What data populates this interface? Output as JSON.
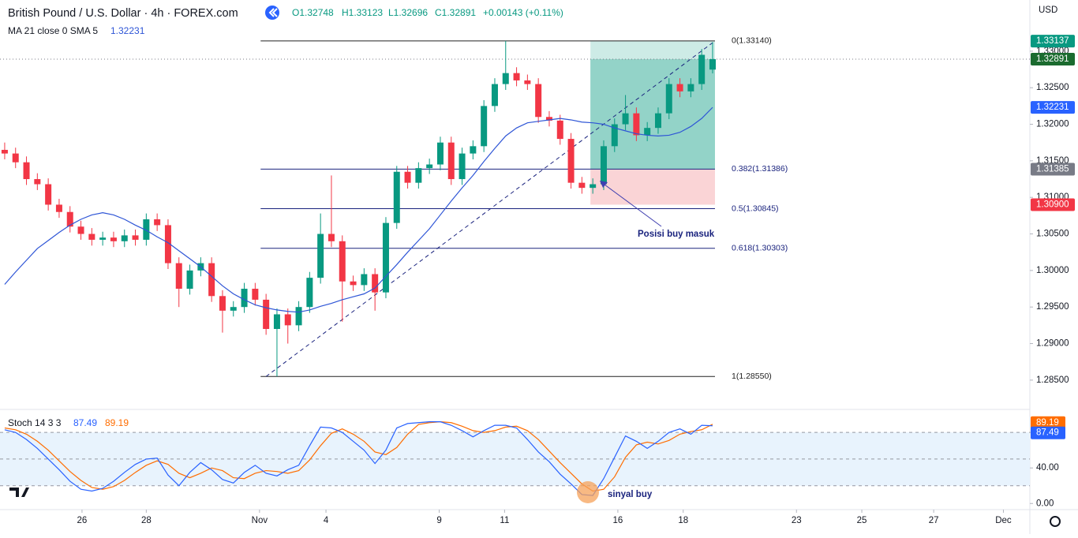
{
  "header": {
    "symbol": "British Pound / U.S. Dollar · 4h · FOREX.com",
    "ohlc_legend": [
      "O1.32748",
      "H1.33123",
      "L1.32696",
      "C1.32891",
      "+0.00143 (+0.11%)"
    ],
    "ma_legend": "MA 21 close 0 SMA 5",
    "ma_value": "1.32231",
    "currency": "USD"
  },
  "chart_data": {
    "type": "candlestick",
    "up_color": "#089981",
    "down_color": "#f23645",
    "ma_color": "#2e55d6",
    "ylim": [
      1.2811,
      1.337
    ],
    "xlim": [
      -0.43,
      94.13
    ],
    "yticks": [
      {
        "value": 1.285,
        "label": "1.28500"
      },
      {
        "value": 1.29,
        "label": "1.29000"
      },
      {
        "value": 1.295,
        "label": "1.29500"
      },
      {
        "value": 1.3,
        "label": "1.30000"
      },
      {
        "value": 1.305,
        "label": "1.30500"
      },
      {
        "value": 1.31,
        "label": "1.31000"
      },
      {
        "value": 1.315,
        "label": "1.31500"
      },
      {
        "value": 1.32,
        "label": "1.32000"
      },
      {
        "value": 1.325,
        "label": "1.32500"
      },
      {
        "value": 1.33,
        "label": "1.33000"
      }
    ],
    "xticks": [
      {
        "value": 7.1,
        "label": "26"
      },
      {
        "value": 13,
        "label": "28"
      },
      {
        "value": 23.4,
        "label": "Nov"
      },
      {
        "value": 29.5,
        "label": "4"
      },
      {
        "value": 39.9,
        "label": "9"
      },
      {
        "value": 45.9,
        "label": "11"
      },
      {
        "value": 56.3,
        "label": "16"
      },
      {
        "value": 62.3,
        "label": "18"
      },
      {
        "value": 72.7,
        "label": "23"
      },
      {
        "value": 78.7,
        "label": "25"
      },
      {
        "value": 85.3,
        "label": "27"
      },
      {
        "value": 91.7,
        "label": "Dec"
      }
    ],
    "candles": [
      [
        1.3165,
        1.3175,
        1.3152,
        1.316
      ],
      [
        1.316,
        1.3168,
        1.314,
        1.3148
      ],
      [
        1.3148,
        1.3156,
        1.3117,
        1.3125
      ],
      [
        1.3125,
        1.3133,
        1.311,
        1.3118
      ],
      [
        1.3118,
        1.3126,
        1.3082,
        1.309
      ],
      [
        1.309,
        1.3098,
        1.3072,
        1.308
      ],
      [
        1.308,
        1.3088,
        1.3052,
        1.306
      ],
      [
        1.306,
        1.3068,
        1.3042,
        1.305
      ],
      [
        1.305,
        1.3058,
        1.3034,
        1.3042
      ],
      [
        1.3042,
        1.3053,
        1.3034,
        1.3045
      ],
      [
        1.3045,
        1.3053,
        1.3032,
        1.304
      ],
      [
        1.304,
        1.3056,
        1.3032,
        1.3048
      ],
      [
        1.3048,
        1.3056,
        1.3034,
        1.3042
      ],
      [
        1.3042,
        1.3078,
        1.3034,
        1.307
      ],
      [
        1.307,
        1.3078,
        1.3054,
        1.3062
      ],
      [
        1.3062,
        1.307,
        1.3002,
        1.301
      ],
      [
        1.301,
        1.3018,
        1.295,
        1.2975
      ],
      [
        1.2975,
        1.3008,
        1.2967,
        1.3
      ],
      [
        1.3,
        1.3018,
        1.2992,
        1.301
      ],
      [
        1.301,
        1.3018,
        1.2957,
        1.2965
      ],
      [
        1.2965,
        1.2973,
        1.2915,
        1.2945
      ],
      [
        1.2945,
        1.2958,
        1.2937,
        1.295
      ],
      [
        1.295,
        1.2983,
        1.2942,
        1.2975
      ],
      [
        1.2975,
        1.2983,
        1.2952,
        1.296
      ],
      [
        1.296,
        1.2968,
        1.2912,
        1.292
      ],
      [
        1.292,
        1.2948,
        1.2855,
        1.294
      ],
      [
        1.294,
        1.2948,
        1.29,
        1.2925
      ],
      [
        1.2925,
        1.2958,
        1.2917,
        1.295
      ],
      [
        1.295,
        1.2998,
        1.2942,
        1.299
      ],
      [
        1.299,
        1.3078,
        1.2982,
        1.305
      ],
      [
        1.305,
        1.313,
        1.3032,
        1.304
      ],
      [
        1.304,
        1.3048,
        1.293,
        1.2985
      ],
      [
        1.2985,
        1.2993,
        1.2972,
        1.298
      ],
      [
        1.298,
        1.3003,
        1.2972,
        1.2995
      ],
      [
        1.2995,
        1.3003,
        1.2945,
        1.297
      ],
      [
        1.297,
        1.3073,
        1.2962,
        1.3065
      ],
      [
        1.3065,
        1.3143,
        1.3057,
        1.3135
      ],
      [
        1.3135,
        1.3143,
        1.3112,
        1.312
      ],
      [
        1.312,
        1.3148,
        1.3112,
        1.314
      ],
      [
        1.314,
        1.3153,
        1.3132,
        1.3145
      ],
      [
        1.3145,
        1.3183,
        1.3137,
        1.3175
      ],
      [
        1.3175,
        1.3183,
        1.3117,
        1.3125
      ],
      [
        1.3125,
        1.3168,
        1.3117,
        1.316
      ],
      [
        1.316,
        1.3178,
        1.3152,
        1.317
      ],
      [
        1.317,
        1.3233,
        1.3162,
        1.3225
      ],
      [
        1.3225,
        1.3263,
        1.3217,
        1.3255
      ],
      [
        1.3255,
        1.3314,
        1.3247,
        1.327
      ],
      [
        1.327,
        1.3278,
        1.3252,
        1.326
      ],
      [
        1.326,
        1.3268,
        1.3247,
        1.3255
      ],
      [
        1.3255,
        1.3263,
        1.3202,
        1.321
      ],
      [
        1.321,
        1.3218,
        1.3197,
        1.3205
      ],
      [
        1.3205,
        1.3213,
        1.3172,
        1.318
      ],
      [
        1.318,
        1.3188,
        1.3112,
        1.312
      ],
      [
        1.312,
        1.3128,
        1.3105,
        1.3113
      ],
      [
        1.3113,
        1.3126,
        1.3105,
        1.3118
      ],
      [
        1.3118,
        1.3178,
        1.311,
        1.317
      ],
      [
        1.317,
        1.3208,
        1.3162,
        1.32
      ],
      [
        1.32,
        1.324,
        1.3192,
        1.3215
      ],
      [
        1.3215,
        1.3223,
        1.3177,
        1.3185
      ],
      [
        1.3185,
        1.3203,
        1.3177,
        1.3195
      ],
      [
        1.3195,
        1.3223,
        1.3187,
        1.3215
      ],
      [
        1.3215,
        1.3263,
        1.3207,
        1.3255
      ],
      [
        1.3255,
        1.3263,
        1.3237,
        1.3245
      ],
      [
        1.3245,
        1.3263,
        1.3237,
        1.3255
      ],
      [
        1.3255,
        1.3303,
        1.3247,
        1.3295
      ],
      [
        1.32748,
        1.33123,
        1.32696,
        1.32891
      ]
    ],
    "ma": [
      1.2981,
      1.2998,
      1.3014,
      1.303,
      1.3041,
      1.3052,
      1.3062,
      1.307,
      1.3076,
      1.3079,
      1.3076,
      1.307,
      1.3062,
      1.3055,
      1.3046,
      1.3038,
      1.3027,
      1.3016,
      1.3005,
      1.2992,
      1.2979,
      1.2968,
      1.296,
      1.2953,
      1.2949,
      1.2946,
      1.2944,
      1.2943,
      1.2946,
      1.2951,
      1.2955,
      1.296,
      1.2964,
      1.2968,
      1.2976,
      1.2992,
      1.3008,
      1.3025,
      1.3041,
      1.3057,
      1.3076,
      1.3095,
      1.3113,
      1.313,
      1.3149,
      1.3167,
      1.3184,
      1.3195,
      1.3202,
      1.3204,
      1.3206,
      1.3208,
      1.3206,
      1.3203,
      1.3202,
      1.32,
      1.3195,
      1.3191,
      1.3187,
      1.3185,
      1.3184,
      1.3185,
      1.3189,
      1.3197,
      1.3208,
      1.32231
    ],
    "fib_levels": [
      {
        "label": "0(1.33140)",
        "value": 1.3314,
        "color": "#222222"
      },
      {
        "label": "0.382(1.31386)",
        "value": 1.31386,
        "color": "#1a237e"
      },
      {
        "label": "0.5(1.30845)",
        "value": 1.30845,
        "color": "#1a237e"
      },
      {
        "label": "0.618(1.30303)",
        "value": 1.30303,
        "color": "#1a237e"
      },
      {
        "label": "1(1.28550)",
        "value": 1.2855,
        "color": "#222222"
      }
    ],
    "position": {
      "target": 1.33137,
      "entry": 1.31386,
      "stop": 1.309,
      "current": 1.32891
    },
    "price_badges": [
      {
        "value": 1.33137,
        "label": "1.33137",
        "color": "#089981"
      },
      {
        "value": 1.32891,
        "label": "1.32891",
        "color": "#1b6b2f"
      },
      {
        "value": 1.32231,
        "label": "1.32231",
        "color": "#2962ff"
      },
      {
        "value": 1.31385,
        "label": "1.31385",
        "color": "#787b86"
      },
      {
        "value": 1.309,
        "label": "1.30900",
        "color": "#f23645"
      }
    ],
    "annotations": {
      "entry_note": "Posisi buy masuk",
      "signal_note": "sinyal buy"
    },
    "stoch": {
      "legend": "Stoch 14 3 3",
      "k_label": "87.49",
      "d_label": "89.19",
      "k_color": "#2962ff",
      "d_color": "#ff6d00",
      "ylim": [
        -6,
        105
      ],
      "yticks": [
        {
          "value": 0,
          "label": "0.00"
        },
        {
          "value": 40,
          "label": "40.00"
        },
        {
          "value": 80,
          "label": "80.00"
        }
      ],
      "band": [
        20,
        80
      ],
      "midline": 50,
      "k": [
        83,
        80,
        72,
        62,
        50,
        38,
        25,
        16,
        14,
        17,
        25,
        35,
        44,
        50,
        51,
        32,
        20,
        35,
        46,
        38,
        27,
        23,
        35,
        43,
        34,
        31,
        38,
        43,
        65,
        86,
        85,
        80,
        70,
        60,
        45,
        60,
        85,
        90,
        91,
        92,
        92,
        88,
        82,
        75,
        82,
        88,
        88,
        85,
        72,
        58,
        47,
        33,
        22,
        10,
        9,
        28,
        52,
        76,
        70,
        62,
        70,
        80,
        84,
        78,
        88,
        87.49
      ],
      "d": [
        85,
        83,
        78,
        70,
        60,
        48,
        36,
        26,
        18,
        16,
        19,
        26,
        35,
        43,
        48,
        44,
        34,
        29,
        34,
        40,
        37,
        29,
        28,
        34,
        37,
        36,
        34,
        37,
        49,
        65,
        79,
        84,
        78,
        70,
        58,
        55,
        63,
        78,
        89,
        91,
        92,
        91,
        87,
        82,
        80,
        82,
        86,
        87,
        82,
        72,
        59,
        46,
        34,
        22,
        14,
        16,
        30,
        52,
        66,
        69,
        67,
        71,
        78,
        81,
        83,
        89.19
      ],
      "badges": [
        {
          "value": 89.19,
          "label": "89.19",
          "color": "#ff6d00"
        },
        {
          "value": 87.49,
          "label": "87.49",
          "color": "#2962ff"
        }
      ]
    }
  }
}
